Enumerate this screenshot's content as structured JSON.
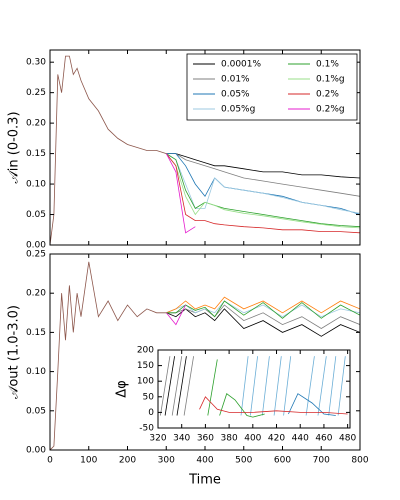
{
  "chart_data": [
    {
      "type": "line",
      "ylabel": "𝒜in (0-0.3)",
      "x": [
        0,
        10,
        20,
        30,
        40,
        50,
        60,
        70,
        80,
        100,
        125,
        150,
        175,
        200,
        225,
        250,
        275,
        300,
        325,
        350,
        375,
        400,
        425,
        450,
        500,
        550,
        600,
        650,
        700,
        750,
        800
      ],
      "xlim": [
        0,
        800
      ],
      "xticks": [
        0,
        100,
        200,
        300,
        400,
        500,
        600,
        700,
        800
      ],
      "show_xtick_labels": false,
      "ylim": [
        0,
        0.32
      ],
      "yticks": [
        {
          "value": 0,
          "label": "0.00"
        },
        {
          "value": 0.05,
          "label": "0.05"
        },
        {
          "value": 0.1,
          "label": "0.10"
        },
        {
          "value": 0.15,
          "label": "0.15"
        },
        {
          "value": 0.2,
          "label": "0.20"
        },
        {
          "value": 0.25,
          "label": "0.25"
        },
        {
          "value": 0.3,
          "label": "0.30"
        }
      ],
      "legend": "upper right",
      "legend_columns": 2,
      "series": [
        {
          "name": "0.0001%",
          "color": "#000000",
          "values": [
            null,
            null,
            null,
            null,
            null,
            null,
            null,
            null,
            null,
            null,
            null,
            null,
            null,
            null,
            null,
            null,
            null,
            0.15,
            0.15,
            0.145,
            0.14,
            0.135,
            0.13,
            0.13,
            0.125,
            0.12,
            0.12,
            0.115,
            0.115,
            0.112,
            0.11
          ]
        },
        {
          "name": "0.01%",
          "color": "#7f7f7f",
          "values": [
            null,
            null,
            null,
            null,
            null,
            null,
            null,
            null,
            null,
            null,
            null,
            null,
            null,
            null,
            null,
            null,
            null,
            0.15,
            0.15,
            0.14,
            0.135,
            0.13,
            0.125,
            0.12,
            0.11,
            0.105,
            0.1,
            0.095,
            0.09,
            0.085,
            0.08
          ]
        },
        {
          "name": "0.05%",
          "color": "#1f77b4",
          "values": [
            null,
            null,
            null,
            null,
            null,
            null,
            null,
            null,
            null,
            null,
            null,
            null,
            null,
            null,
            null,
            null,
            null,
            0.15,
            0.15,
            0.13,
            0.1,
            0.08,
            0.11,
            0.095,
            0.09,
            0.085,
            0.08,
            0.07,
            0.065,
            0.06,
            0.05
          ]
        },
        {
          "name": "0.05%g",
          "color": "#9ecae1",
          "values": [
            null,
            null,
            null,
            null,
            null,
            null,
            null,
            null,
            null,
            null,
            null,
            null,
            null,
            null,
            null,
            null,
            null,
            0.15,
            0.14,
            0.1,
            0.06,
            0.06,
            0.11,
            0.095,
            0.09,
            0.085,
            0.078,
            0.07,
            0.065,
            0.058,
            0.052
          ]
        },
        {
          "name": "0.1%",
          "color": "#2ca02c",
          "values": [
            null,
            null,
            null,
            null,
            null,
            null,
            null,
            null,
            null,
            null,
            null,
            null,
            null,
            null,
            null,
            null,
            null,
            0.15,
            0.14,
            0.09,
            0.06,
            0.07,
            0.065,
            0.06,
            0.055,
            0.05,
            0.045,
            0.04,
            0.035,
            0.032,
            0.03
          ]
        },
        {
          "name": "0.1%g",
          "color": "#98df8a",
          "values": [
            null,
            null,
            null,
            null,
            null,
            null,
            null,
            null,
            null,
            null,
            null,
            null,
            null,
            null,
            null,
            null,
            null,
            0.15,
            0.13,
            0.08,
            0.05,
            0.07,
            0.065,
            0.058,
            0.052,
            0.048,
            0.043,
            0.038,
            0.034,
            0.03,
            0.028
          ]
        },
        {
          "name": "0.2%",
          "color": "#d62728",
          "values": [
            null,
            null,
            null,
            null,
            null,
            null,
            null,
            null,
            null,
            null,
            null,
            null,
            null,
            null,
            null,
            null,
            null,
            0.15,
            0.13,
            0.05,
            0.04,
            0.04,
            0.035,
            0.033,
            0.03,
            0.028,
            0.025,
            0.025,
            0.022,
            0.022,
            0.02
          ]
        },
        {
          "name": "0.2%g",
          "color": "#e51ecf",
          "values": [
            null,
            null,
            null,
            null,
            null,
            null,
            null,
            null,
            null,
            null,
            null,
            null,
            null,
            null,
            null,
            null,
            null,
            0.15,
            0.12,
            0.02,
            0.03,
            null,
            null,
            null,
            null,
            null,
            null,
            null,
            null,
            null,
            null
          ]
        },
        {
          "color": "#8c564b",
          "values": [
            0,
            0.05,
            0.28,
            0.25,
            0.31,
            0.31,
            0.28,
            0.29,
            0.27,
            0.24,
            0.22,
            0.19,
            0.175,
            0.165,
            0.16,
            0.155,
            0.155,
            0.15,
            null,
            null,
            null,
            null,
            null,
            null,
            null,
            null,
            null,
            null,
            null,
            null,
            null
          ]
        }
      ]
    },
    {
      "type": "line",
      "ylabel": "𝒜out (1.0-3.0)",
      "xlabel": "Time",
      "x": [
        0,
        10,
        20,
        30,
        40,
        50,
        60,
        70,
        80,
        100,
        125,
        150,
        175,
        200,
        225,
        250,
        275,
        300,
        325,
        350,
        375,
        400,
        425,
        450,
        500,
        550,
        600,
        650,
        700,
        750,
        800
      ],
      "xlim": [
        0,
        800
      ],
      "xticks": [
        0,
        100,
        200,
        300,
        400,
        500,
        600,
        700,
        800
      ],
      "ylim": [
        0,
        0.25
      ],
      "yticks": [
        {
          "value": 0,
          "label": "0.00"
        },
        {
          "value": 0.05,
          "label": "0.05"
        },
        {
          "value": 0.1,
          "label": "0.10"
        },
        {
          "value": 0.15,
          "label": "0.15"
        },
        {
          "value": 0.2,
          "label": "0.20"
        },
        {
          "value": 0.25,
          "label": "0.25"
        }
      ],
      "series": [
        {
          "color": "#000000",
          "values": [
            null,
            null,
            null,
            null,
            null,
            null,
            null,
            null,
            null,
            null,
            null,
            null,
            null,
            null,
            null,
            null,
            null,
            0.175,
            0.17,
            0.18,
            0.17,
            0.175,
            0.165,
            0.18,
            0.155,
            0.165,
            0.15,
            0.16,
            0.145,
            0.16,
            0.15
          ]
        },
        {
          "color": "#7f7f7f",
          "values": [
            null,
            null,
            null,
            null,
            null,
            null,
            null,
            null,
            null,
            null,
            null,
            null,
            null,
            null,
            null,
            null,
            null,
            0.175,
            0.175,
            0.18,
            0.175,
            0.18,
            0.17,
            0.185,
            0.165,
            0.175,
            0.16,
            0.17,
            0.155,
            0.17,
            0.16
          ]
        },
        {
          "color": "#9ecae1",
          "values": [
            null,
            null,
            null,
            null,
            null,
            null,
            null,
            null,
            null,
            null,
            null,
            null,
            null,
            null,
            null,
            null,
            null,
            0.175,
            0.18,
            0.185,
            0.175,
            0.18,
            0.175,
            0.19,
            0.175,
            0.185,
            0.17,
            0.185,
            0.17,
            0.18,
            0.175
          ]
        },
        {
          "color": "#ff7f0e",
          "values": [
            null,
            null,
            null,
            null,
            null,
            null,
            null,
            null,
            null,
            null,
            null,
            null,
            null,
            null,
            null,
            null,
            null,
            0.175,
            0.18,
            0.19,
            0.18,
            0.185,
            0.18,
            0.195,
            0.18,
            0.19,
            0.175,
            0.19,
            0.175,
            0.19,
            0.18
          ]
        },
        {
          "color": "#2ca02c",
          "values": [
            null,
            null,
            null,
            null,
            null,
            null,
            null,
            null,
            null,
            null,
            null,
            null,
            null,
            null,
            null,
            null,
            null,
            0.175,
            0.175,
            0.185,
            0.178,
            0.182,
            0.17,
            0.19,
            0.172,
            0.188,
            0.168,
            0.188,
            0.168,
            0.185,
            0.172
          ]
        },
        {
          "color": "#e51ecf",
          "values": [
            null,
            null,
            null,
            null,
            null,
            null,
            null,
            null,
            null,
            null,
            null,
            null,
            null,
            null,
            null,
            null,
            null,
            0.175,
            0.16,
            0.185,
            null,
            null,
            null,
            null,
            null,
            null,
            null,
            null,
            null,
            null,
            null
          ]
        },
        {
          "color": "#8c564b",
          "values": [
            0,
            0.005,
            0.1,
            0.2,
            0.14,
            0.21,
            0.15,
            0.2,
            0.17,
            0.24,
            0.17,
            0.19,
            0.165,
            0.185,
            0.17,
            0.18,
            0.175,
            0.175,
            null,
            null,
            null,
            null,
            null,
            null,
            null,
            null,
            null,
            null,
            null,
            null,
            null
          ]
        }
      ]
    },
    {
      "type": "line",
      "ylabel": "Δφ",
      "xlim": [
        320,
        482
      ],
      "xticks": [
        320,
        340,
        360,
        380,
        400,
        420,
        440,
        460,
        480
      ],
      "ylim": [
        -50,
        200
      ],
      "yticks": [
        -50,
        0,
        50,
        100,
        150,
        200
      ],
      "series": [
        {
          "color": "#7f7f7f",
          "x": [
            322,
            330,
            null,
            332,
            340,
            null,
            342,
            350
          ],
          "values": [
            -10,
            180,
            null,
            -10,
            180,
            null,
            -10,
            180
          ]
        },
        {
          "color": "#000000",
          "x": [
            326,
            334,
            null,
            336,
            344
          ],
          "values": [
            -10,
            180,
            null,
            -10,
            180
          ]
        },
        {
          "color": "#6baed6",
          "x": [
            390,
            396,
            null,
            398,
            404,
            null,
            408,
            414,
            null,
            418,
            424,
            null,
            426,
            432,
            null,
            445,
            452,
            null,
            455,
            462,
            null,
            464,
            470,
            null,
            472,
            478
          ],
          "values": [
            -10,
            180,
            null,
            -10,
            180,
            null,
            -10,
            180,
            null,
            -10,
            180,
            null,
            -10,
            180,
            null,
            -10,
            180,
            null,
            -10,
            180,
            null,
            -10,
            180,
            null,
            -10,
            180
          ]
        },
        {
          "color": "#2ca02c",
          "x": [
            362,
            370,
            null,
            372,
            378,
            385,
            395,
            400,
            410
          ],
          "values": [
            -10,
            170,
            null,
            -10,
            60,
            40,
            -10,
            -15,
            -5
          ]
        },
        {
          "color": "#1f77b4",
          "x": [
            430,
            438,
            450,
            460,
            470
          ],
          "values": [
            -5,
            60,
            30,
            -5,
            -10
          ]
        },
        {
          "color": "#d62728",
          "x": [
            355,
            360,
            365,
            370,
            380,
            400,
            420,
            440,
            460,
            480
          ],
          "values": [
            10,
            50,
            30,
            10,
            0,
            0,
            5,
            0,
            0,
            -5
          ]
        }
      ]
    }
  ]
}
